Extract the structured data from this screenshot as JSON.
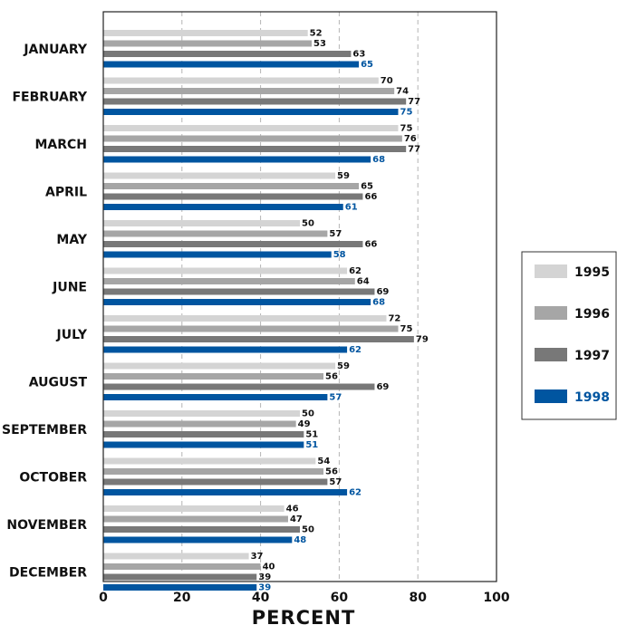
{
  "chart_data": {
    "type": "bar",
    "orientation": "horizontal",
    "title": "",
    "xlabel": "PERCENT",
    "ylabel": "",
    "xlim": [
      0,
      100
    ],
    "x_ticks": [
      0,
      20,
      40,
      60,
      80,
      100
    ],
    "grid": "dashed vertical at 20, 40, 60, 80",
    "legend_position": "right",
    "categories": [
      "JANUARY",
      "FEBRUARY",
      "MARCH",
      "APRIL",
      "MAY",
      "JUNE",
      "JULY",
      "AUGUST",
      "SEPTEMBER",
      "OCTOBER",
      "NOVEMBER",
      "DECEMBER"
    ],
    "series": [
      {
        "name": "1995",
        "color": "#d4d4d4",
        "label_color": "#111111",
        "values": [
          52,
          70,
          75,
          59,
          50,
          62,
          72,
          59,
          50,
          54,
          46,
          37
        ]
      },
      {
        "name": "1996",
        "color": "#a6a6a6",
        "label_color": "#111111",
        "values": [
          53,
          74,
          76,
          65,
          57,
          64,
          75,
          56,
          49,
          56,
          47,
          40
        ]
      },
      {
        "name": "1997",
        "color": "#787878",
        "label_color": "#111111",
        "values": [
          63,
          77,
          77,
          66,
          66,
          69,
          79,
          69,
          51,
          57,
          50,
          39
        ]
      },
      {
        "name": "1998",
        "color": "#0055a0",
        "label_color": "#0055a0",
        "values": [
          65,
          75,
          68,
          61,
          58,
          68,
          62,
          57,
          51,
          62,
          48,
          39
        ]
      }
    ]
  }
}
